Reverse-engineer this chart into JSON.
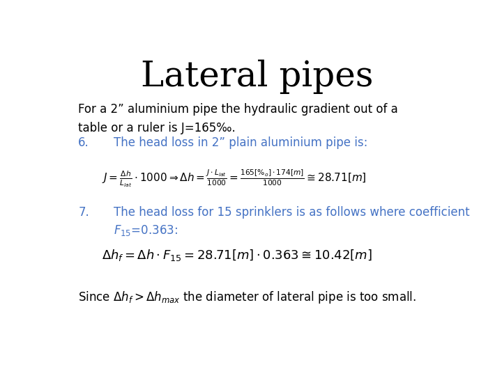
{
  "title": "Lateral pipes",
  "title_fontsize": 36,
  "bg_color": "#ffffff",
  "blue_color": "#4472C4",
  "black_color": "#000000",
  "intro_text_line1": "For a 2” aluminium pipe the hydraulic gradient out of a",
  "intro_text_line2": "table or a ruler is J=165‰.",
  "item6_label": "6.",
  "item6_text": "The head loss in 2” plain aluminium pipe is:",
  "item7_label": "7.",
  "item7_text_line1": "The head loss for 15 sprinklers is as follows where coefficient",
  "item7_text_line2": "F15=0.363:"
}
